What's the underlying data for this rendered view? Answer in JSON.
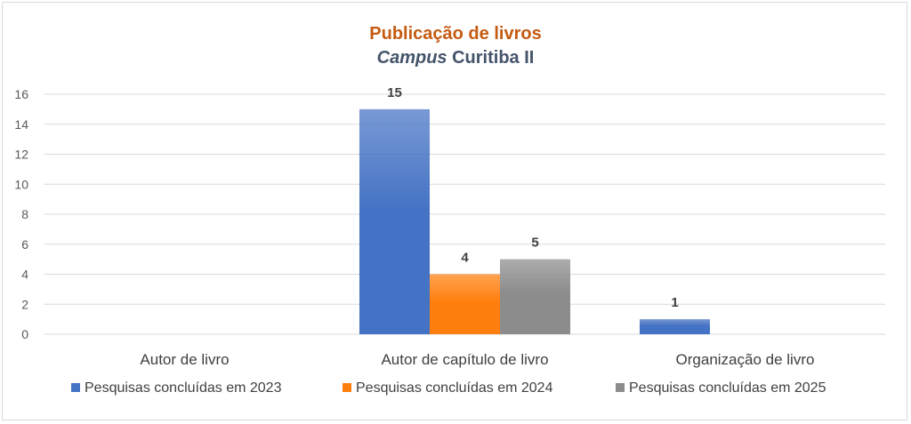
{
  "chart_data": {
    "type": "bar",
    "title": "Publicação de livros",
    "subtitle_italic": "Campus",
    "subtitle_rest": " Curitiba II",
    "categories": [
      "Autor de livro",
      "Autor de capítulo de livro",
      "Organização de livro"
    ],
    "series": [
      {
        "name": "Pesquisas concluídas em 2023",
        "values": [
          null,
          15,
          1
        ],
        "color": "#4472c4"
      },
      {
        "name": "Pesquisas concluídas em 2024",
        "values": [
          null,
          4,
          null
        ],
        "color": "#ff7f0e"
      },
      {
        "name": "Pesquisas concluídas em 2025",
        "values": [
          null,
          5,
          null
        ],
        "color": "#8c8c8c"
      }
    ],
    "yticks": [
      0,
      2,
      4,
      6,
      8,
      10,
      12,
      14,
      16
    ],
    "ylim": [
      0,
      16
    ],
    "grid": true,
    "legend": "bottom",
    "data_labels": true
  }
}
